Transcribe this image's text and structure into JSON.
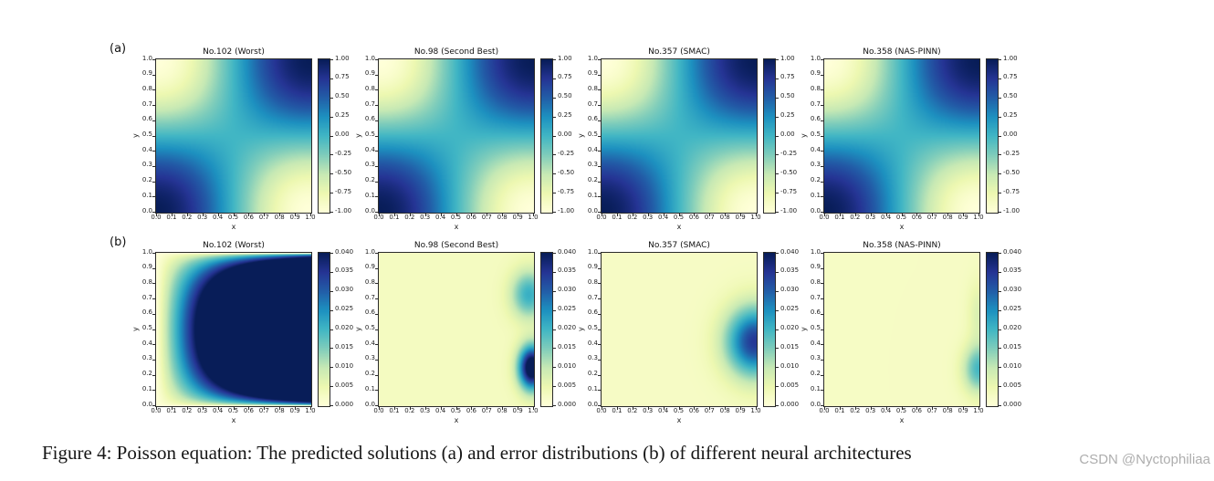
{
  "page": {
    "background": "#ffffff"
  },
  "figure": {
    "row_labels": {
      "a": "(a)",
      "b": "(b)"
    },
    "caption": "Figure 4: Poisson equation: The predicted solutions (a) and error distributions (b) of different neural architectures",
    "watermark": "CSDN @Nyctophiliaa",
    "subplot_grid": {
      "rows": 2,
      "cols": 4
    },
    "colormap": {
      "name": "YlGnBu",
      "stops": [
        [
          0,
          "#ffffd9"
        ],
        [
          0.125,
          "#edf8b1"
        ],
        [
          0.25,
          "#c7e9b4"
        ],
        [
          0.375,
          "#7fcdbb"
        ],
        [
          0.5,
          "#41b6c4"
        ],
        [
          0.625,
          "#1d91c0"
        ],
        [
          0.75,
          "#225ea8"
        ],
        [
          0.875,
          "#253494"
        ],
        [
          1,
          "#081d58"
        ]
      ]
    },
    "axis": {
      "xlabel": "x",
      "ylabel": "y",
      "xticks": [
        "0.0",
        "0.1",
        "0.2",
        "0.3",
        "0.4",
        "0.5",
        "0.6",
        "0.7",
        "0.8",
        "0.9",
        "1.0"
      ],
      "yticks": [
        "0.0",
        "0.1",
        "0.2",
        "0.3",
        "0.4",
        "0.5",
        "0.6",
        "0.7",
        "0.8",
        "0.9",
        "1.0"
      ]
    }
  },
  "chart_data": [
    {
      "id": "a1",
      "row": "a",
      "type": "heatmap",
      "title": "No.102 (Worst)",
      "xlabel": "x",
      "ylabel": "y",
      "x_range": [
        0,
        1
      ],
      "y_range": [
        0,
        1
      ],
      "value_range": [
        -1,
        1
      ],
      "colorbar_ticks": [
        "1.00",
        "0.75",
        "0.50",
        "0.25",
        "0.00",
        "-0.25",
        "-0.50",
        "-0.75",
        "-1.00"
      ],
      "field": {
        "kind": "coscos",
        "description": "predicted solution u(x,y) ~ cos(pi x)cos(pi y): dark maxima (+1) at corners (0,0),(1,1); light minima (-1) at (0,1),(1,0); zero (teal) along x=0.5 and y=0.5"
      }
    },
    {
      "id": "a2",
      "row": "a",
      "type": "heatmap",
      "title": "No.98 (Second Best)",
      "xlabel": "x",
      "ylabel": "y",
      "x_range": [
        0,
        1
      ],
      "y_range": [
        0,
        1
      ],
      "value_range": [
        -1,
        1
      ],
      "colorbar_ticks": [
        "1.00",
        "0.75",
        "0.50",
        "0.25",
        "0.00",
        "-0.25",
        "-0.50",
        "-0.75",
        "-1.00"
      ],
      "field": {
        "kind": "coscos",
        "description": "predicted solution u(x,y) ~ cos(pi x)cos(pi y)"
      }
    },
    {
      "id": "a3",
      "row": "a",
      "type": "heatmap",
      "title": "No.357 (SMAC)",
      "xlabel": "x",
      "ylabel": "y",
      "x_range": [
        0,
        1
      ],
      "y_range": [
        0,
        1
      ],
      "value_range": [
        -1,
        1
      ],
      "colorbar_ticks": [
        "1.00",
        "0.75",
        "0.50",
        "0.25",
        "0.00",
        "-0.25",
        "-0.50",
        "-0.75",
        "-1.00"
      ],
      "field": {
        "kind": "coscos",
        "description": "predicted solution u(x,y) ~ cos(pi x)cos(pi y)"
      }
    },
    {
      "id": "a4",
      "row": "a",
      "type": "heatmap",
      "title": "No.358 (NAS-PINN)",
      "xlabel": "x",
      "ylabel": "y",
      "x_range": [
        0,
        1
      ],
      "y_range": [
        0,
        1
      ],
      "value_range": [
        -1,
        1
      ],
      "colorbar_ticks": [
        "1.00",
        "0.75",
        "0.50",
        "0.25",
        "0.00",
        "-0.25",
        "-0.50",
        "-0.75",
        "-1.00"
      ],
      "field": {
        "kind": "coscos",
        "description": "predicted solution u(x,y) ~ cos(pi x)cos(pi y)"
      }
    },
    {
      "id": "b1",
      "row": "b",
      "type": "heatmap",
      "title": "No.102 (Worst)",
      "xlabel": "x",
      "ylabel": "y",
      "x_range": [
        0,
        1
      ],
      "y_range": [
        0,
        1
      ],
      "value_range": [
        0,
        0.04
      ],
      "colorbar_ticks": [
        "0.040",
        "0.035",
        "0.030",
        "0.025",
        "0.020",
        "0.015",
        "0.010",
        "0.005",
        "0.000"
      ],
      "field": {
        "kind": "edge_saturated",
        "scale": 0.16,
        "pow": 0.55,
        "description": "error saturated (>=0.040, dark navy) over most of domain right of x~0.25 at mid height; light (~0) margin along left edge and thin light strips on top/bottom edges; parabolic boundary opening right"
      }
    },
    {
      "id": "b2",
      "row": "b",
      "type": "heatmap",
      "title": "No.98 (Second Best)",
      "xlabel": "x",
      "ylabel": "y",
      "x_range": [
        0,
        1
      ],
      "y_range": [
        0,
        1
      ],
      "value_range": [
        0,
        0.04
      ],
      "colorbar_ticks": [
        "0.040",
        "0.035",
        "0.030",
        "0.025",
        "0.020",
        "0.015",
        "0.010",
        "0.005",
        "0.000"
      ],
      "field": {
        "kind": "blobs",
        "base": 0.003,
        "blobs": [
          {
            "cx": 0.97,
            "cy": 0.73,
            "sx": 0.08,
            "sy": 0.11,
            "amp": 0.018
          },
          {
            "cx": 0.99,
            "cy": 0.25,
            "sx": 0.06,
            "sy": 0.1,
            "amp": 0.045
          }
        ],
        "description": "error ~0.003 over interior; teal lobe (~0.02) at right edge near y=0.73 and dark navy lobe (~0.04) at right edge near y=0.25; light streak at y~0.5"
      }
    },
    {
      "id": "b3",
      "row": "b",
      "type": "heatmap",
      "title": "No.357 (SMAC)",
      "xlabel": "x",
      "ylabel": "y",
      "x_range": [
        0,
        1
      ],
      "y_range": [
        0,
        1
      ],
      "value_range": [
        0,
        0.04
      ],
      "colorbar_ticks": [
        "0.040",
        "0.035",
        "0.030",
        "0.025",
        "0.020",
        "0.015",
        "0.010",
        "0.005",
        "0.000"
      ],
      "field": {
        "kind": "blobs",
        "base": 0.0025,
        "blobs": [
          {
            "cx": 0.99,
            "cy": 0.42,
            "sx": 0.13,
            "sy": 0.16,
            "amp": 0.032
          }
        ],
        "description": "error ~0.0025 over interior; single blue-teal lobe (~0.033 max) hugging right edge centered near (1.0, 0.4), spanning y 0.1-0.7"
      }
    },
    {
      "id": "b4",
      "row": "b",
      "type": "heatmap",
      "title": "No.358 (NAS-PINN)",
      "xlabel": "x",
      "ylabel": "y",
      "x_range": [
        0,
        1
      ],
      "y_range": [
        0,
        1
      ],
      "value_range": [
        0,
        0.04
      ],
      "colorbar_ticks": [
        "0.040",
        "0.035",
        "0.030",
        "0.025",
        "0.020",
        "0.015",
        "0.010",
        "0.005",
        "0.000"
      ],
      "field": {
        "kind": "blobs",
        "base": 0.0025,
        "blobs": [
          {
            "cx": 1.0,
            "cy": 0.24,
            "sx": 0.07,
            "sy": 0.11,
            "amp": 0.017
          },
          {
            "cx": 1.0,
            "cy": 0.6,
            "sx": 0.05,
            "sy": 0.15,
            "amp": 0.005
          }
        ],
        "description": "error ~0.0025 over interior; mild teal lobe (~0.018 max) at right edge near y=0.25"
      }
    }
  ]
}
